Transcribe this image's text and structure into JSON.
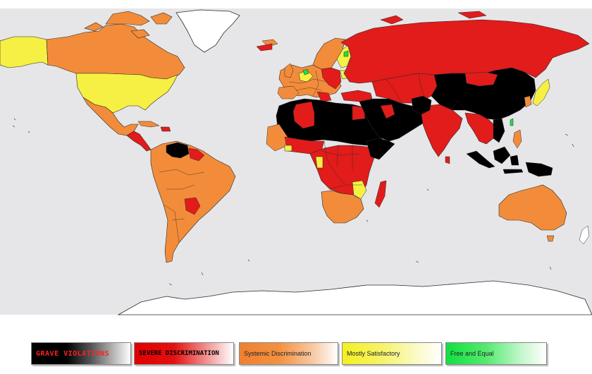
{
  "map": {
    "ocean_color": "#e6e6e8",
    "border_color": "#2a2a2a"
  },
  "legend": {
    "items": [
      {
        "key": "grave",
        "label": "GRAVE VIOLATIONS",
        "color": "#000000"
      },
      {
        "key": "severe",
        "label": "SEVERE DISCRIMINATION",
        "color": "#e21b1b"
      },
      {
        "key": "systemic",
        "label": "Systemic Discrimination",
        "color": "#f28c3a"
      },
      {
        "key": "mostly",
        "label": "Mostly Satisfactory",
        "color": "#f5f043"
      },
      {
        "key": "free",
        "label": "Free and Equal",
        "color": "#22dd44"
      }
    ]
  }
}
